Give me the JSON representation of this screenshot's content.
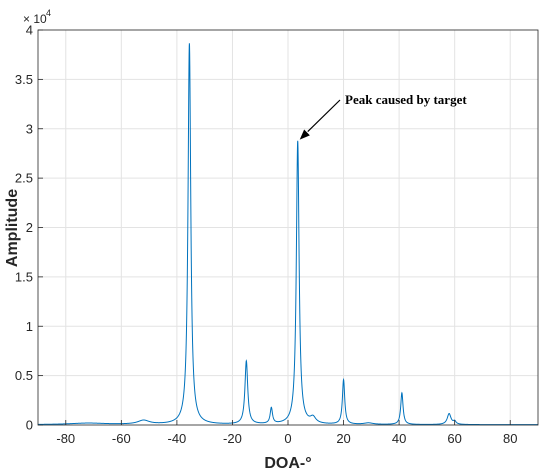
{
  "chart_data": {
    "type": "line",
    "xlabel": "DOA-°",
    "ylabel": "Amplitude",
    "xlim": [
      -90,
      90
    ],
    "ylim": [
      0,
      40000
    ],
    "xticks": [
      -80,
      -60,
      -40,
      -20,
      0,
      20,
      40,
      60,
      80
    ],
    "yticks": [
      0,
      5000,
      10000,
      15000,
      20000,
      25000,
      30000,
      35000,
      40000
    ],
    "ytick_labels": [
      "0",
      "0.5",
      "1",
      "1.5",
      "2",
      "2.5",
      "3",
      "3.5",
      "4"
    ],
    "y_exponent_base": "× 10",
    "y_exponent_power": "4",
    "grid": true,
    "series": [
      {
        "color": "#0072bd",
        "peaks": [
          {
            "x": -72,
            "y": 150,
            "width": 8
          },
          {
            "x": -52,
            "y": 400,
            "width": 2.5
          },
          {
            "x": -35.5,
            "y": 38600,
            "width": 0.6
          },
          {
            "x": -15,
            "y": 6400,
            "width": 0.6
          },
          {
            "x": -6,
            "y": 1600,
            "width": 0.5
          },
          {
            "x": 3.5,
            "y": 28700,
            "width": 0.6
          },
          {
            "x": 9,
            "y": 600,
            "width": 1.2
          },
          {
            "x": 20,
            "y": 4500,
            "width": 0.5
          },
          {
            "x": 29,
            "y": 150,
            "width": 2
          },
          {
            "x": 41,
            "y": 3200,
            "width": 0.5
          },
          {
            "x": 58,
            "y": 1100,
            "width": 0.8
          },
          {
            "x": 60,
            "y": 300,
            "width": 0.6
          }
        ]
      }
    ],
    "annotation": {
      "text": "Peak caused by target",
      "target_x": 3.5,
      "target_y": 28700
    }
  }
}
